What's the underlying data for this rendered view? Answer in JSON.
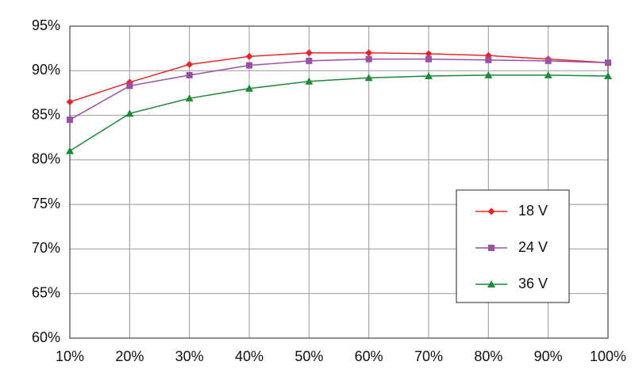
{
  "chart_data": {
    "type": "line",
    "x": [
      10,
      20,
      30,
      40,
      50,
      60,
      70,
      80,
      90,
      100
    ],
    "xlim": [
      10,
      100
    ],
    "xticks": [
      {
        "value": 10,
        "label": "10%"
      },
      {
        "value": 20,
        "label": "20%"
      },
      {
        "value": 30,
        "label": "30%"
      },
      {
        "value": 40,
        "label": "40%"
      },
      {
        "value": 50,
        "label": "50%"
      },
      {
        "value": 60,
        "label": "60%"
      },
      {
        "value": 70,
        "label": "70%"
      },
      {
        "value": 80,
        "label": "80%"
      },
      {
        "value": 90,
        "label": "90%"
      },
      {
        "value": 100,
        "label": "100%"
      }
    ],
    "ylim": [
      60,
      95
    ],
    "yticks": [
      {
        "value": 60,
        "label": "60%"
      },
      {
        "value": 65,
        "label": "65%"
      },
      {
        "value": 70,
        "label": "70%"
      },
      {
        "value": 75,
        "label": "75%"
      },
      {
        "value": 80,
        "label": "80%"
      },
      {
        "value": 85,
        "label": "85%"
      },
      {
        "value": 90,
        "label": "90%"
      },
      {
        "value": 95,
        "label": "95%"
      }
    ],
    "grid": true,
    "legend": "lower right",
    "series": [
      {
        "name": "18 V",
        "color": "#e8262a",
        "marker": "diamond",
        "values": [
          86.5,
          88.7,
          90.7,
          91.6,
          92.0,
          92.0,
          91.9,
          91.7,
          91.3,
          90.9
        ]
      },
      {
        "name": "24 V",
        "color": "#9b4fa5",
        "marker": "square",
        "values": [
          84.5,
          88.3,
          89.5,
          90.6,
          91.1,
          91.3,
          91.3,
          91.2,
          91.1,
          90.9
        ]
      },
      {
        "name": "36 V",
        "color": "#1a8a3a",
        "marker": "triangle",
        "values": [
          81.0,
          85.2,
          86.9,
          88.0,
          88.8,
          89.2,
          89.4,
          89.5,
          89.5,
          89.4
        ]
      }
    ]
  }
}
